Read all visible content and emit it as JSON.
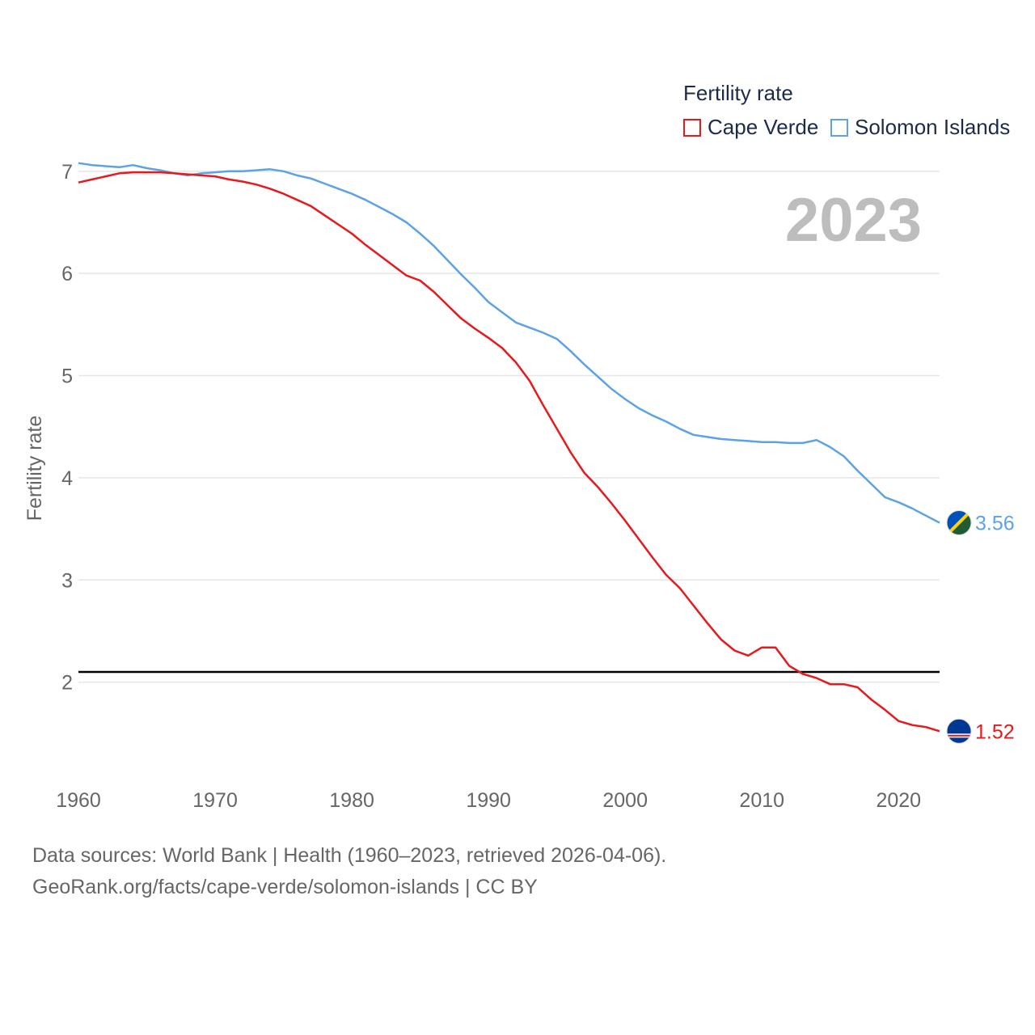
{
  "chart_data": {
    "type": "line",
    "legend_title": "Fertility rate",
    "ylabel": "Fertility rate",
    "xlabel": "",
    "year_label": "2023",
    "xlim": [
      1960,
      2023
    ],
    "ylim": [
      1,
      7.6
    ],
    "x_ticks": [
      1960,
      1970,
      1980,
      1990,
      2000,
      2010,
      2020
    ],
    "y_ticks": [
      2,
      3,
      4,
      5,
      6,
      7
    ],
    "reference_line": 2.1,
    "legend_position": "top-right",
    "x": [
      1960,
      1961,
      1962,
      1963,
      1964,
      1965,
      1966,
      1967,
      1968,
      1969,
      1970,
      1971,
      1972,
      1973,
      1974,
      1975,
      1976,
      1977,
      1978,
      1979,
      1980,
      1981,
      1982,
      1983,
      1984,
      1985,
      1986,
      1987,
      1988,
      1989,
      1990,
      1991,
      1992,
      1993,
      1994,
      1995,
      1996,
      1997,
      1998,
      1999,
      2000,
      2001,
      2002,
      2003,
      2004,
      2005,
      2006,
      2007,
      2008,
      2009,
      2010,
      2011,
      2012,
      2013,
      2014,
      2015,
      2016,
      2017,
      2018,
      2019,
      2020,
      2021,
      2022,
      2023
    ],
    "series": [
      {
        "name": "Cape Verde",
        "color": "#e8191c",
        "end_label": "1.52",
        "values": [
          6.89,
          6.92,
          6.95,
          6.98,
          6.99,
          6.99,
          6.99,
          6.98,
          6.97,
          6.96,
          6.95,
          6.92,
          6.9,
          6.87,
          6.83,
          6.78,
          6.72,
          6.66,
          6.57,
          6.48,
          6.39,
          6.28,
          6.18,
          6.08,
          5.98,
          5.93,
          5.82,
          5.69,
          5.56,
          5.46,
          5.37,
          5.27,
          5.13,
          4.95,
          4.71,
          4.48,
          4.25,
          4.05,
          3.91,
          3.75,
          3.58,
          3.4,
          3.22,
          3.05,
          2.92,
          2.75,
          2.58,
          2.42,
          2.31,
          2.26,
          2.34,
          2.34,
          2.16,
          2.08,
          2.04,
          1.98,
          1.98,
          1.95,
          1.83,
          1.73,
          1.62,
          1.58,
          1.56,
          1.52
        ]
      },
      {
        "name": "Solomon Islands",
        "color": "#5ba3e6",
        "end_label": "3.56",
        "values": [
          7.08,
          7.06,
          7.05,
          7.04,
          7.06,
          7.03,
          7.01,
          6.98,
          6.96,
          6.98,
          6.99,
          7.0,
          7.0,
          7.01,
          7.02,
          7.0,
          6.96,
          6.93,
          6.88,
          6.83,
          6.78,
          6.72,
          6.65,
          6.58,
          6.5,
          6.39,
          6.27,
          6.13,
          5.99,
          5.86,
          5.72,
          5.62,
          5.52,
          5.47,
          5.42,
          5.36,
          5.24,
          5.11,
          4.99,
          4.87,
          4.77,
          4.68,
          4.61,
          4.55,
          4.48,
          4.42,
          4.4,
          4.38,
          4.37,
          4.36,
          4.35,
          4.35,
          4.34,
          4.34,
          4.37,
          4.3,
          4.21,
          4.07,
          3.94,
          3.81,
          3.76,
          3.7,
          3.63,
          3.56
        ]
      }
    ]
  },
  "footer": {
    "line1": "Data sources: World Bank | Health (1960–2023, retrieved 2026-04-06).",
    "line2": "GeoRank.org/facts/cape-verde/solomon-islands | CC BY"
  }
}
